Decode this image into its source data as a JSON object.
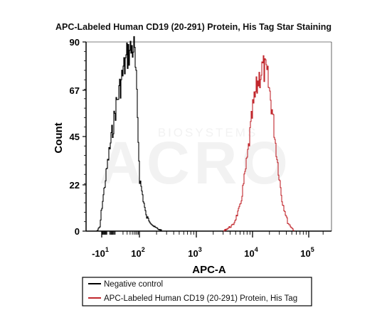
{
  "chart_data": {
    "type": "area",
    "title": "APC-Labeled Human CD19 (20-291) Protein, His Tag Star Staining",
    "xlabel": "APC-A",
    "ylabel": "Count",
    "x_scale": "biexponential",
    "ylim": [
      0,
      90
    ],
    "y_ticks": [
      "0",
      "22",
      "45",
      "67",
      "90"
    ],
    "x_ticks": [
      {
        "base": "-10",
        "exp": "1",
        "value": -10
      },
      {
        "base": "10",
        "exp": "2",
        "value": 100
      },
      {
        "base": "10",
        "exp": "3",
        "value": 1000
      },
      {
        "base": "10",
        "exp": "4",
        "value": 10000
      },
      {
        "base": "10",
        "exp": "5",
        "value": 100000
      }
    ],
    "series": [
      {
        "name": "Negative control",
        "color": "#000000",
        "peak_x": 55,
        "peak_count": 88,
        "x": [
          -60,
          -30,
          -15,
          0,
          10,
          20,
          30,
          40,
          50,
          55,
          60,
          70,
          80,
          100,
          130,
          180,
          250
        ],
        "count": [
          0,
          2,
          10,
          35,
          60,
          76,
          84,
          86,
          87,
          88,
          85,
          72,
          55,
          25,
          7,
          2,
          0
        ]
      },
      {
        "name": "APC-Labeled Human CD19 (20-291) Protein, His Tag",
        "color": "#c1272d",
        "peak_x": 15000,
        "peak_count": 78,
        "x": [
          3000,
          4500,
          6000,
          8000,
          10000,
          12500,
          15000,
          18000,
          22000,
          27000,
          33000,
          42000,
          55000
        ],
        "count": [
          0,
          3,
          12,
          35,
          58,
          72,
          78,
          74,
          58,
          35,
          15,
          4,
          0
        ]
      }
    ],
    "legend_position": "bottom"
  },
  "watermark": {
    "brand": "ACRO",
    "sub": "BIOSYSTEMS"
  }
}
